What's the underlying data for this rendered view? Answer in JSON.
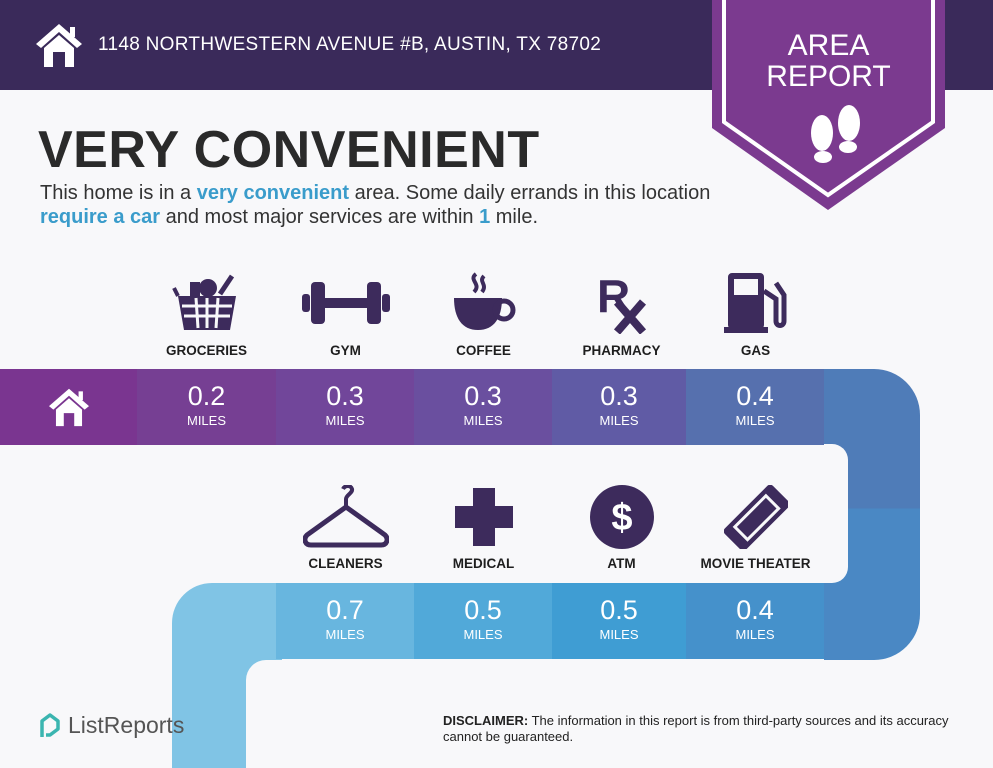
{
  "header": {
    "address": "1148 NORTHWESTERN AVENUE #B, AUSTIN, TX 78702",
    "home_icon": "house-icon"
  },
  "badge": {
    "line1": "AREA",
    "line2": "REPORT",
    "icon": "footprints-icon"
  },
  "title": "VERY CONVENIENT",
  "description": {
    "p1": "This home is in a ",
    "h1": "very convenient",
    "p2": " area. Some daily errands in this location ",
    "h2": "require a car",
    "p3": " and most major services are within ",
    "h3": "1",
    "p4": " mile."
  },
  "top_row": [
    {
      "label": "GROCERIES",
      "value": "0.2",
      "unit": "MILES",
      "icon": "grocery-basket-icon",
      "color": "#763f93"
    },
    {
      "label": "GYM",
      "value": "0.3",
      "unit": "MILES",
      "icon": "dumbbell-icon",
      "color": "#71469a"
    },
    {
      "label": "COFFEE",
      "value": "0.3",
      "unit": "MILES",
      "icon": "coffee-cup-icon",
      "color": "#6a4f9f"
    },
    {
      "label": "PHARMACY",
      "value": "0.3",
      "unit": "MILES",
      "icon": "rx-icon",
      "color": "#605ba5"
    },
    {
      "label": "GAS",
      "value": "0.4",
      "unit": "MILES",
      "icon": "gas-pump-icon",
      "color": "#5670ae"
    }
  ],
  "bottom_row": [
    {
      "label": "CLEANERS",
      "value": "0.7",
      "unit": "MILES",
      "icon": "hanger-icon",
      "color": "#68b6df"
    },
    {
      "label": "MEDICAL",
      "value": "0.5",
      "unit": "MILES",
      "icon": "medical-cross-icon",
      "color": "#51a9d9"
    },
    {
      "label": "ATM",
      "value": "0.5",
      "unit": "MILES",
      "icon": "dollar-icon",
      "color": "#3f9dd3"
    },
    {
      "label": "MOVIE THEATER",
      "value": "0.4",
      "unit": "MILES",
      "icon": "ticket-icon",
      "color": "#4591cb"
    }
  ],
  "colors": {
    "header": "#3a2a5a",
    "badge": "#7b3a8f",
    "highlight": "#3a9ccb",
    "icon": "#3d2b5c"
  },
  "logo": {
    "text": "ListReports"
  },
  "disclaimer": {
    "label": "DISCLAIMER:",
    "text": " The information in this report is from third-party sources and its accuracy cannot be guaranteed."
  }
}
